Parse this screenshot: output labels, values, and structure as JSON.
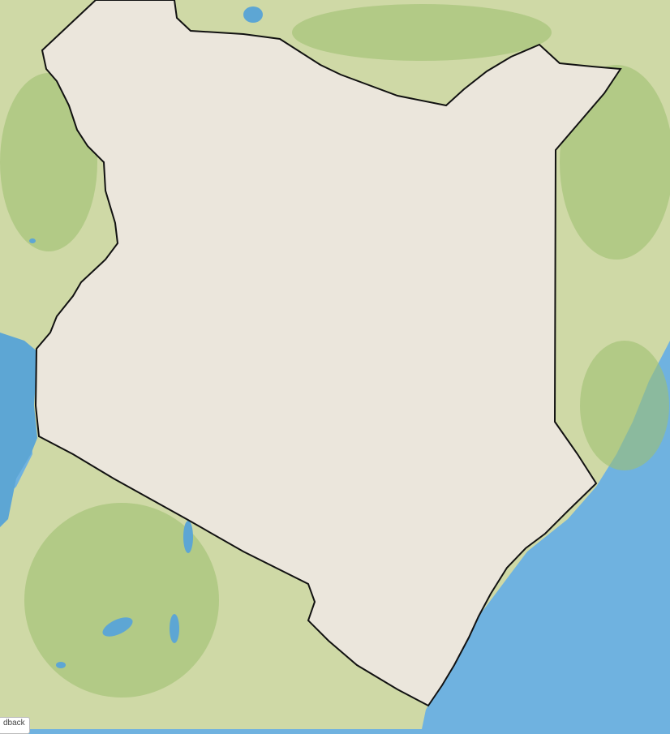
{
  "map": {
    "colors": {
      "ocean": "#6fb2e0",
      "land_outside": "#cfd9a6",
      "forest": "#9fbf72",
      "lake": "#5da6d4",
      "country_base": "#ebe6dc",
      "zone_light": "#f0cd86",
      "zone_mid": "#eeab55",
      "zone_dark": "#e7913a",
      "protected_area_fill": "#a3aa62",
      "protected_area_stroke": "#6f7a3c",
      "hatch": "#b17aa6",
      "river": "#8eb3c9",
      "border": "#111111"
    }
  },
  "ui": {
    "feedback_label": "dback"
  }
}
